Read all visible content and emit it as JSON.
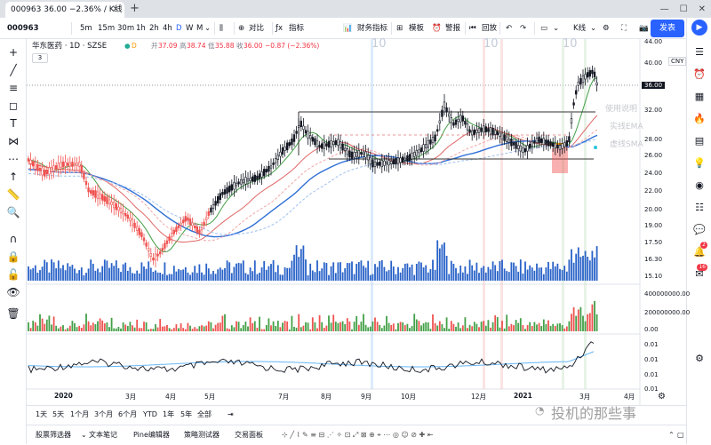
{
  "window": {
    "tab_title": "000963 36.00 −2.36% / K线",
    "new_tab": "+"
  },
  "toolbar": {
    "symbol": "000963",
    "intervals": [
      "5m",
      "15m",
      "30m",
      "1h",
      "2h",
      "4h",
      "D",
      "W",
      "M"
    ],
    "active_interval": "D",
    "compare": "对比",
    "indicators": "指标",
    "financials": "财务指标",
    "templates": "模板",
    "alert": "警报",
    "replay": "回放",
    "chart_type": "K线",
    "publish": "发表"
  },
  "legend": {
    "name": "华东医药 · 1D · SZSE",
    "open_label": "开",
    "open": "37.09",
    "high_label": "高",
    "high": "38.74",
    "low_label": "低",
    "low": "35.88",
    "close_label": "收",
    "close": "36.00",
    "change": "−0.87 (−2.36%)",
    "collapse_count": "3"
  },
  "side_notes": [
    "使用说明",
    "实线EMA",
    "虚线SMA"
  ],
  "price_axis": {
    "currency": "CNY",
    "main_ticks": [
      "44.00",
      "40.00",
      "36.00",
      "32.00",
      "28.00",
      "26.00",
      "24.00",
      "22.00",
      "20.00",
      "19.00",
      "17.50",
      "16.30",
      "15.10"
    ],
    "current_price": "36.00",
    "volume_ticks": [
      "400000000.00",
      "200000000.00",
      "0.00"
    ],
    "osc_ticks": [
      "0.01",
      "0.01",
      "0.01",
      "0.01"
    ]
  },
  "time_axis": [
    "2020",
    "3月",
    "4月",
    "5月",
    "7月",
    "8月",
    "9月",
    "10月",
    "12月",
    "2021",
    "3月",
    "4月"
  ],
  "event_markers": [
    "10",
    "10",
    "10"
  ],
  "range_bar": {
    "ranges": [
      "1天",
      "5天",
      "1个月",
      "3个月",
      "6个月",
      "YTD",
      "1年",
      "5年",
      "全部"
    ]
  },
  "bottom_bar": {
    "tabs": [
      "股票筛选器",
      "文本笔记",
      "Pine编辑器",
      "策略测试器",
      "交易面板"
    ]
  },
  "watermark": "投机的那些事",
  "right_badges": {
    "alerts": "2",
    "notifications": "16"
  },
  "colors": {
    "up": "#26a69a",
    "down": "#ef5350",
    "volume_blue": "#2862c8",
    "accent": "#2962ff",
    "ma_blue": "#2f6fd6",
    "ma_red": "#e06666",
    "ma_green": "#43a047"
  }
}
